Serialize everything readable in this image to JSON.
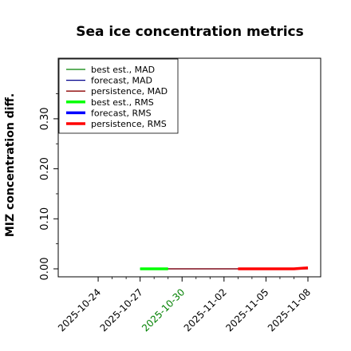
{
  "chart_data": {
    "type": "line",
    "title": "Sea ice concentration metrics",
    "xlabel": "",
    "ylabel": "MIZ concentration diff.",
    "xlim": [
      "2025-10-22",
      "2025-11-08"
    ],
    "ylim": [
      -0.01,
      0.36
    ],
    "y_ticks": [
      0.0,
      0.1,
      0.2,
      0.3
    ],
    "y_tick_labels": [
      "0.00",
      "0.10",
      "0.20",
      "0.30"
    ],
    "y_minor_ticks": [
      0.05,
      0.15,
      0.25,
      0.35
    ],
    "x_ticks": [
      "2025-10-24",
      "2025-10-27",
      "2025-10-30",
      "2025-11-02",
      "2025-11-05",
      "2025-11-08"
    ],
    "x_tick_colors": [
      "#000000",
      "#000000",
      "#008000",
      "#000000",
      "#000000",
      "#000000"
    ],
    "x_minor_ticks": [
      "2025-10-25",
      "2025-10-26",
      "2025-10-28",
      "2025-10-29",
      "2025-10-31",
      "2025-11-01",
      "2025-11-03",
      "2025-11-04",
      "2025-11-06",
      "2025-11-07"
    ],
    "grid": false,
    "legend_position": "top-left",
    "series": [
      {
        "name": "best est., MAD",
        "color": "#008000",
        "width": 1.3,
        "points": [
          [
            "2025-10-27",
            0.0
          ],
          [
            "2025-10-29",
            0.0
          ]
        ]
      },
      {
        "name": "forecast,  MAD",
        "color": "#00008b",
        "width": 1.3,
        "points": [
          [
            "2025-10-27",
            0.0
          ],
          [
            "2025-11-08",
            0.0
          ]
        ]
      },
      {
        "name": "persistence, MAD",
        "color": "#8b0000",
        "width": 1.3,
        "points": [
          [
            "2025-10-29",
            0.0
          ],
          [
            "2025-11-08",
            0.0
          ]
        ]
      },
      {
        "name": "best est., RMS",
        "color": "#00ff00",
        "width": 3.5,
        "points": [
          [
            "2025-10-27",
            0.0
          ],
          [
            "2025-10-29",
            0.0
          ]
        ]
      },
      {
        "name": "forecast,  RMS",
        "color": "#0000ff",
        "width": 3.5,
        "points": []
      },
      {
        "name": "persistence, RMS",
        "color": "#ff0000",
        "width": 3.5,
        "points": [
          [
            "2025-11-03",
            0.0
          ],
          [
            "2025-11-04",
            0.0
          ],
          [
            "2025-11-06",
            0.0
          ],
          [
            "2025-11-07",
            0.0
          ],
          [
            "2025-11-08",
            0.002
          ]
        ]
      }
    ]
  }
}
